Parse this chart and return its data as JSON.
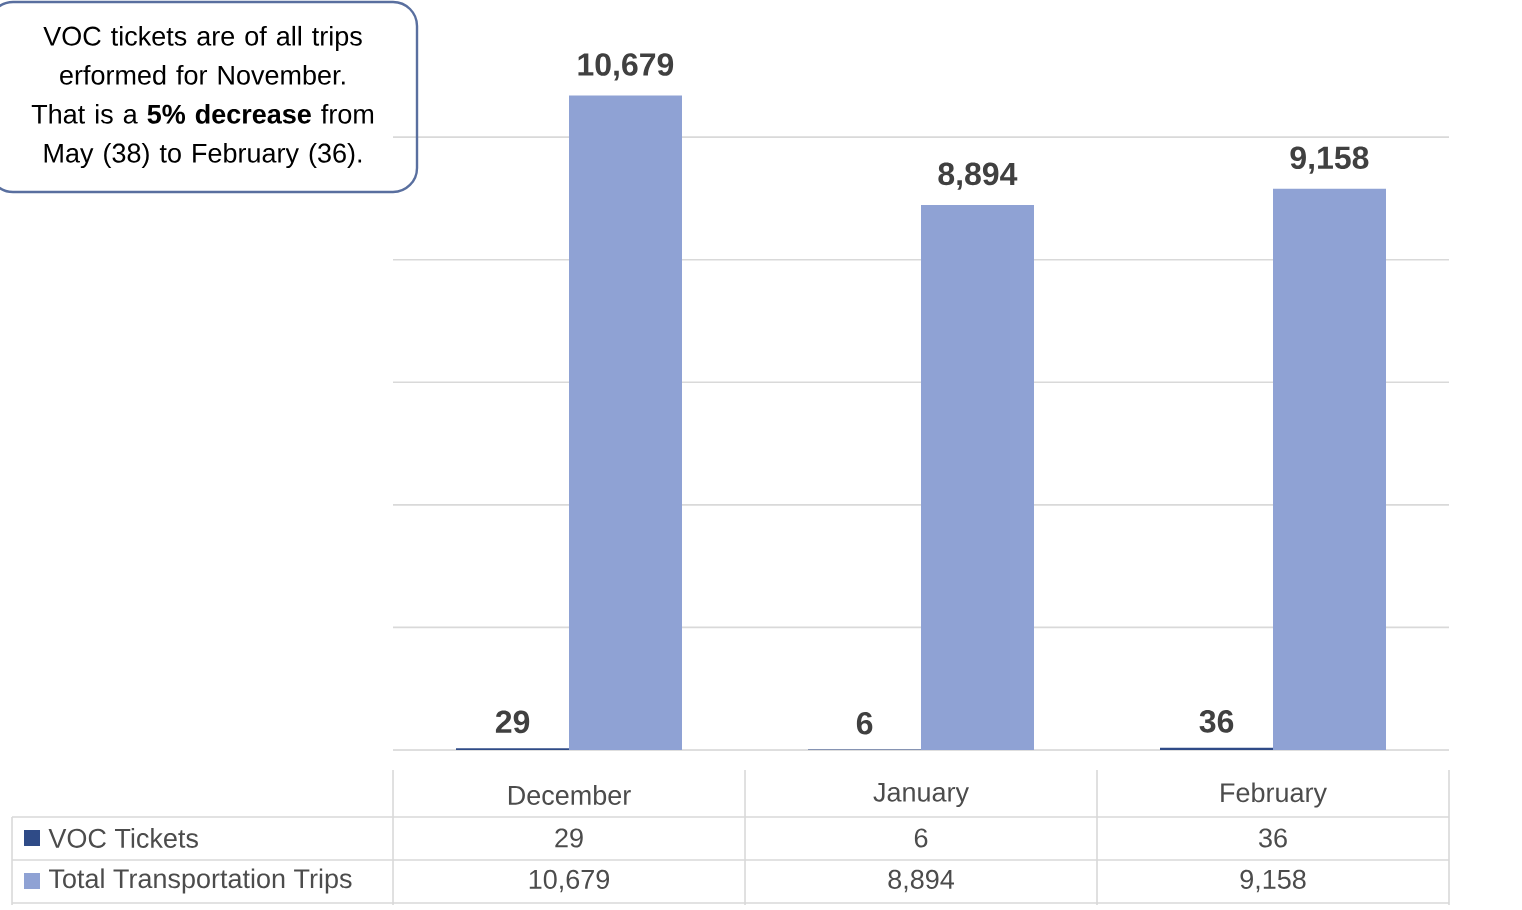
{
  "chart_data": {
    "type": "bar",
    "categories": [
      "December",
      "January",
      "February"
    ],
    "series": [
      {
        "name": "VOC Tickets",
        "color": "#2f4b87",
        "values": [
          29,
          6,
          36
        ],
        "value_labels": [
          "29",
          "6",
          "36"
        ]
      },
      {
        "name": "Total Transportation Trips",
        "color": "#8fa2d4",
        "values": [
          10679,
          8894,
          9158
        ],
        "value_labels": [
          "10,679",
          "8,894",
          "9,158"
        ]
      }
    ],
    "grid": "y",
    "legend": "bottom",
    "annotations": [
      "VOC tickets are of all trips erformed for November. That is a  **5% decrease** from May (38) to February (36)."
    ]
  }
}
